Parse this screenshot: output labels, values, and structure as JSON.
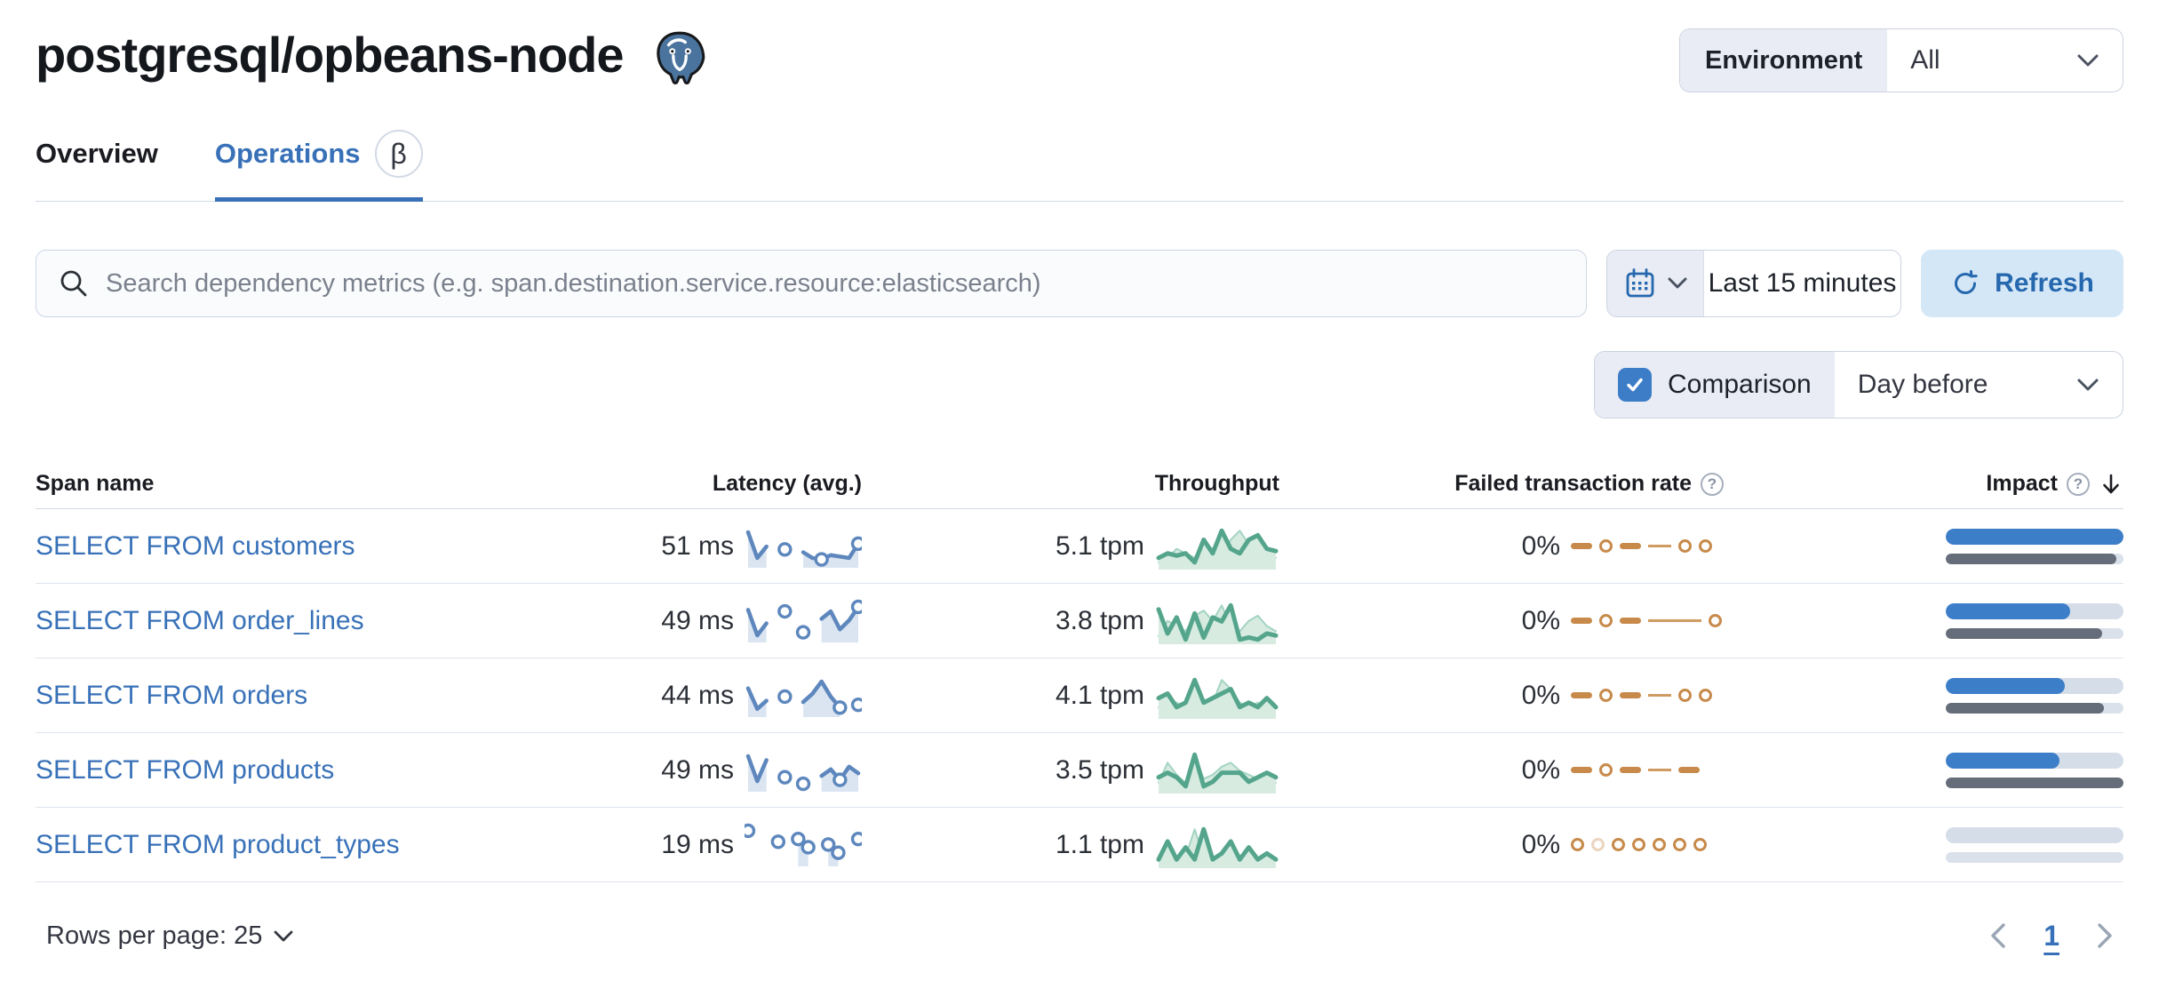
{
  "page": {
    "title": "postgresql/opbeans-node"
  },
  "environment": {
    "label": "Environment",
    "value": "All"
  },
  "tabs": [
    {
      "label": "Overview",
      "active": false
    },
    {
      "label": "Operations",
      "active": true,
      "beta": "β"
    }
  ],
  "toolbar": {
    "search_placeholder": "Search dependency metrics (e.g. span.destination.service.resource:elasticsearch)",
    "time_range": "Last 15 minutes",
    "refresh_label": "Refresh",
    "comparison_label": "Comparison",
    "comparison_checked": true,
    "comparison_value": "Day before"
  },
  "colors": {
    "link_blue": "#3871b8",
    "latency_line": "#5d87bd",
    "latency_fill": "#dbe5f2",
    "throughput_line": "#54a58c",
    "throughput_fill": "#d7ebe1",
    "throughput_prev_line": "#a3d4c2",
    "failed_orange": "#c78a4a",
    "impact_current": "#3d7ec9",
    "impact_previous": "#666d7a"
  },
  "table": {
    "columns": [
      "Span name",
      "Latency (avg.)",
      "Throughput",
      "Failed transaction rate",
      "Impact"
    ],
    "rows": [
      {
        "name": "SELECT FROM customers",
        "latency": "51 ms",
        "throughput": "5.1 tpm",
        "failed": "0%",
        "latency_spark": {
          "values": [
            46,
            10,
            26,
            null,
            22,
            null,
            18,
            10,
            8,
            14,
            12,
            10,
            30
          ],
          "dots": [
            4,
            8,
            12
          ]
        },
        "throughput_spark": {
          "current": [
            2,
            3,
            2.5,
            3,
            1,
            6,
            3,
            8,
            4,
            3,
            6,
            7,
            4,
            3.5
          ],
          "previous": [
            1,
            2,
            4,
            3,
            2,
            5,
            4,
            3,
            6,
            8,
            5,
            3,
            2,
            2
          ]
        },
        "failed_spark": [
          "dash",
          "circle",
          "dash",
          "line",
          "circle",
          "circle"
        ],
        "impact": {
          "current": 100,
          "previous": 96
        }
      },
      {
        "name": "SELECT FROM order_lines",
        "latency": "49 ms",
        "throughput": "3.8 tpm",
        "failed": "0%",
        "latency_spark": {
          "values": [
            40,
            6,
            22,
            null,
            38,
            null,
            10,
            null,
            28,
            38,
            14,
            26,
            44
          ],
          "dots": [
            4,
            6,
            12
          ]
        },
        "throughput_spark": {
          "current": [
            8,
            2,
            6,
            0.5,
            7,
            1,
            6,
            5,
            9,
            0.5,
            1,
            0.5,
            2,
            1.5
          ],
          "previous": [
            1,
            4,
            3,
            2,
            5,
            6,
            4,
            7,
            3,
            2,
            4,
            5,
            3,
            2
          ]
        },
        "failed_spark": [
          "dash",
          "circle",
          "dash",
          "longline",
          "circle"
        ],
        "impact": {
          "current": 70,
          "previous": 88
        }
      },
      {
        "name": "SELECT FROM orders",
        "latency": "44 ms",
        "throughput": "4.1 tpm",
        "failed": "0%",
        "latency_spark": {
          "values": [
            38,
            8,
            20,
            null,
            26,
            null,
            18,
            30,
            48,
            26,
            10,
            null,
            14
          ],
          "dots": [
            4,
            10,
            12
          ]
        },
        "throughput_spark": {
          "current": [
            4,
            5,
            2,
            3,
            8,
            3,
            4,
            5,
            6,
            2,
            3,
            2,
            4,
            2
          ],
          "previous": [
            2,
            3,
            3,
            2,
            4,
            3,
            3,
            8,
            6,
            3,
            2,
            3,
            2,
            2
          ]
        },
        "failed_spark": [
          "dash",
          "circle",
          "dash",
          "line",
          "circle",
          "circle"
        ],
        "impact": {
          "current": 67,
          "previous": 89
        }
      },
      {
        "name": "SELECT FROM products",
        "latency": "49 ms",
        "throughput": "3.5 tpm",
        "failed": "0%",
        "latency_spark": {
          "values": [
            50,
            12,
            44,
            null,
            18,
            null,
            8,
            null,
            20,
            30,
            14,
            34,
            24
          ],
          "dots": [
            4,
            6,
            10
          ]
        },
        "throughput_spark": {
          "current": [
            3,
            4,
            3,
            1,
            8,
            1,
            2,
            4,
            4,
            4,
            2,
            3,
            4,
            3
          ],
          "previous": [
            2,
            7,
            4,
            2,
            9,
            3,
            4,
            6,
            7,
            5,
            4,
            3,
            4,
            2
          ]
        },
        "failed_spark": [
          "dash",
          "circle",
          "dash",
          "line",
          "dash"
        ],
        "impact": {
          "current": 64,
          "previous": 100
        }
      },
      {
        "name": "SELECT FROM product_types",
        "latency": "19 ms",
        "throughput": "1.1 tpm",
        "failed": "0%",
        "latency_spark": {
          "values": [
            12,
            null,
            null,
            8,
            null,
            9,
            6,
            null,
            7,
            4,
            null,
            9
          ],
          "dots": [
            0,
            3,
            5,
            6,
            8,
            9,
            11
          ]
        },
        "throughput_spark": {
          "current": [
            0.5,
            2,
            0.5,
            1.5,
            0.5,
            3,
            0.5,
            1,
            2,
            0.5,
            1.5,
            0.5,
            1,
            0.5
          ],
          "previous": [
            1,
            1.5,
            1,
            2,
            8,
            2,
            1,
            3,
            1,
            2,
            1,
            1,
            1,
            1
          ]
        },
        "failed_spark": [
          "circle",
          "circle-faded",
          "circle",
          "circle",
          "circle",
          "circle",
          "circle"
        ],
        "impact": {
          "current": 0,
          "previous": 0
        }
      }
    ]
  },
  "footer": {
    "rows_per_page": "Rows per page: 25",
    "page": "1"
  }
}
